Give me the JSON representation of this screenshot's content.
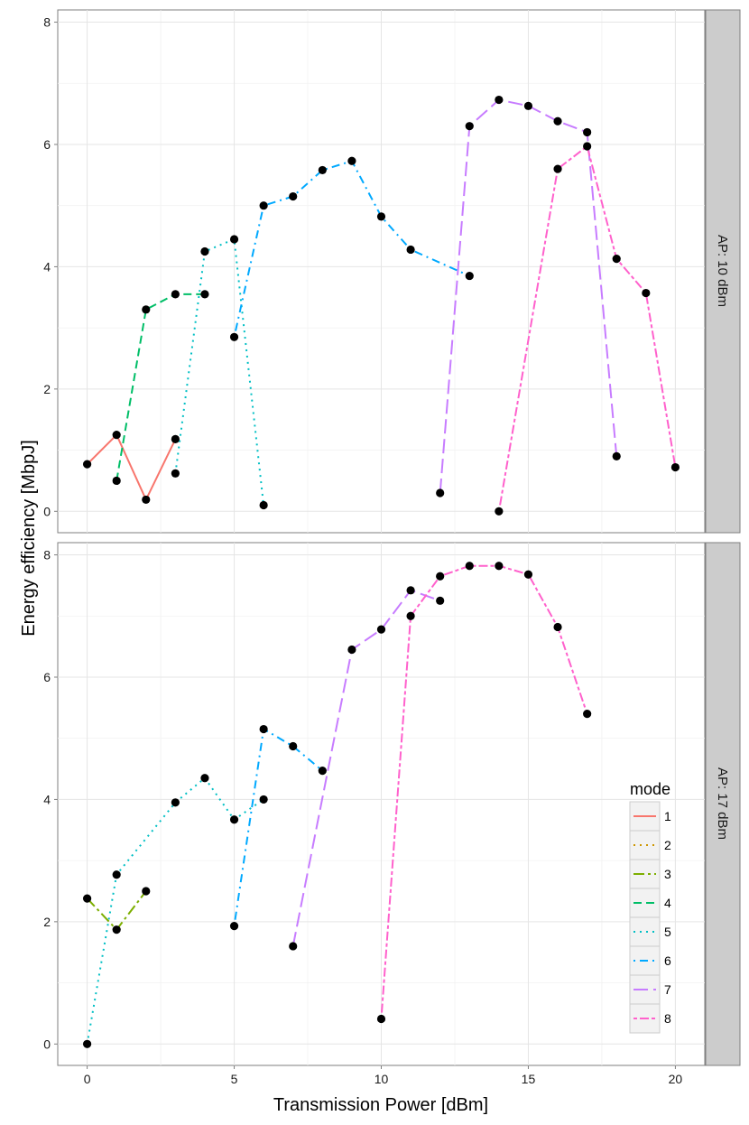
{
  "chart_data": {
    "type": "line",
    "xlabel": "Transmission Power [dBm]",
    "ylabel": "Energy efficiency [MbpJ]",
    "xlim": [
      -1,
      21
    ],
    "ylim": [
      -0.35,
      8.2
    ],
    "x_ticks": [
      0,
      5,
      10,
      15,
      20
    ],
    "y_ticks": [
      0,
      2,
      4,
      6,
      8
    ],
    "grid": true,
    "legend": {
      "title": "mode",
      "placement": "bottom-right inside lower panel",
      "entries": [
        {
          "label": "1",
          "color": "#F8766D",
          "dash": "solid"
        },
        {
          "label": "2",
          "color": "#CD9600",
          "dash": "dotted"
        },
        {
          "label": "3",
          "color": "#7CAE00",
          "dash": "dashdot-long"
        },
        {
          "label": "4",
          "color": "#00BE67",
          "dash": "dashed"
        },
        {
          "label": "5",
          "color": "#00BFC4",
          "dash": "dotted"
        },
        {
          "label": "6",
          "color": "#00A9FF",
          "dash": "dashdot"
        },
        {
          "label": "7",
          "color": "#C77CFF",
          "dash": "longdash"
        },
        {
          "label": "8",
          "color": "#FF61CC",
          "dash": "twodash"
        }
      ]
    },
    "panels": [
      {
        "strip": "AP: 10 dBm",
        "series": [
          {
            "mode": "1",
            "x": [
              0,
              1,
              2,
              3
            ],
            "y": [
              0.77,
              1.25,
              0.19,
              1.18
            ]
          },
          {
            "mode": "4",
            "x": [
              1,
              2,
              3,
              4
            ],
            "y": [
              0.5,
              3.3,
              3.55,
              3.55
            ]
          },
          {
            "mode": "5",
            "x": [
              3,
              4,
              5,
              6
            ],
            "y": [
              0.62,
              4.25,
              4.45,
              0.1
            ]
          },
          {
            "mode": "6",
            "x": [
              5,
              6,
              7,
              8,
              9,
              10,
              11,
              13
            ],
            "y": [
              2.85,
              5.0,
              5.15,
              5.58,
              5.73,
              4.82,
              4.28,
              3.85
            ]
          },
          {
            "mode": "7",
            "x": [
              12,
              13,
              14,
              15,
              16,
              17,
              18
            ],
            "y": [
              0.3,
              6.3,
              6.73,
              6.63,
              6.38,
              6.2,
              0.9
            ]
          },
          {
            "mode": "8",
            "x": [
              14,
              16,
              17,
              18,
              19,
              20
            ],
            "y": [
              0.0,
              5.6,
              5.97,
              4.13,
              3.57,
              0.72
            ]
          }
        ]
      },
      {
        "strip": "AP: 17 dBm",
        "series": [
          {
            "mode": "3",
            "x": [
              0,
              1,
              2
            ],
            "y": [
              2.38,
              1.87,
              2.5
            ]
          },
          {
            "mode": "5",
            "x": [
              0,
              1,
              3,
              4,
              5,
              6
            ],
            "y": [
              0.0,
              2.77,
              3.95,
              4.35,
              3.67,
              4.0
            ]
          },
          {
            "mode": "6",
            "x": [
              5,
              6,
              7,
              8
            ],
            "y": [
              1.93,
              5.15,
              4.87,
              4.47
            ]
          },
          {
            "mode": "7",
            "x": [
              7,
              9,
              10,
              11,
              12
            ],
            "y": [
              1.6,
              6.45,
              6.78,
              7.42,
              7.25
            ]
          },
          {
            "mode": "8",
            "x": [
              10,
              11,
              12,
              13,
              14,
              15,
              16,
              17
            ],
            "y": [
              0.41,
              7.0,
              7.65,
              7.82,
              7.82,
              7.68,
              6.82,
              5.4
            ]
          }
        ]
      }
    ]
  }
}
